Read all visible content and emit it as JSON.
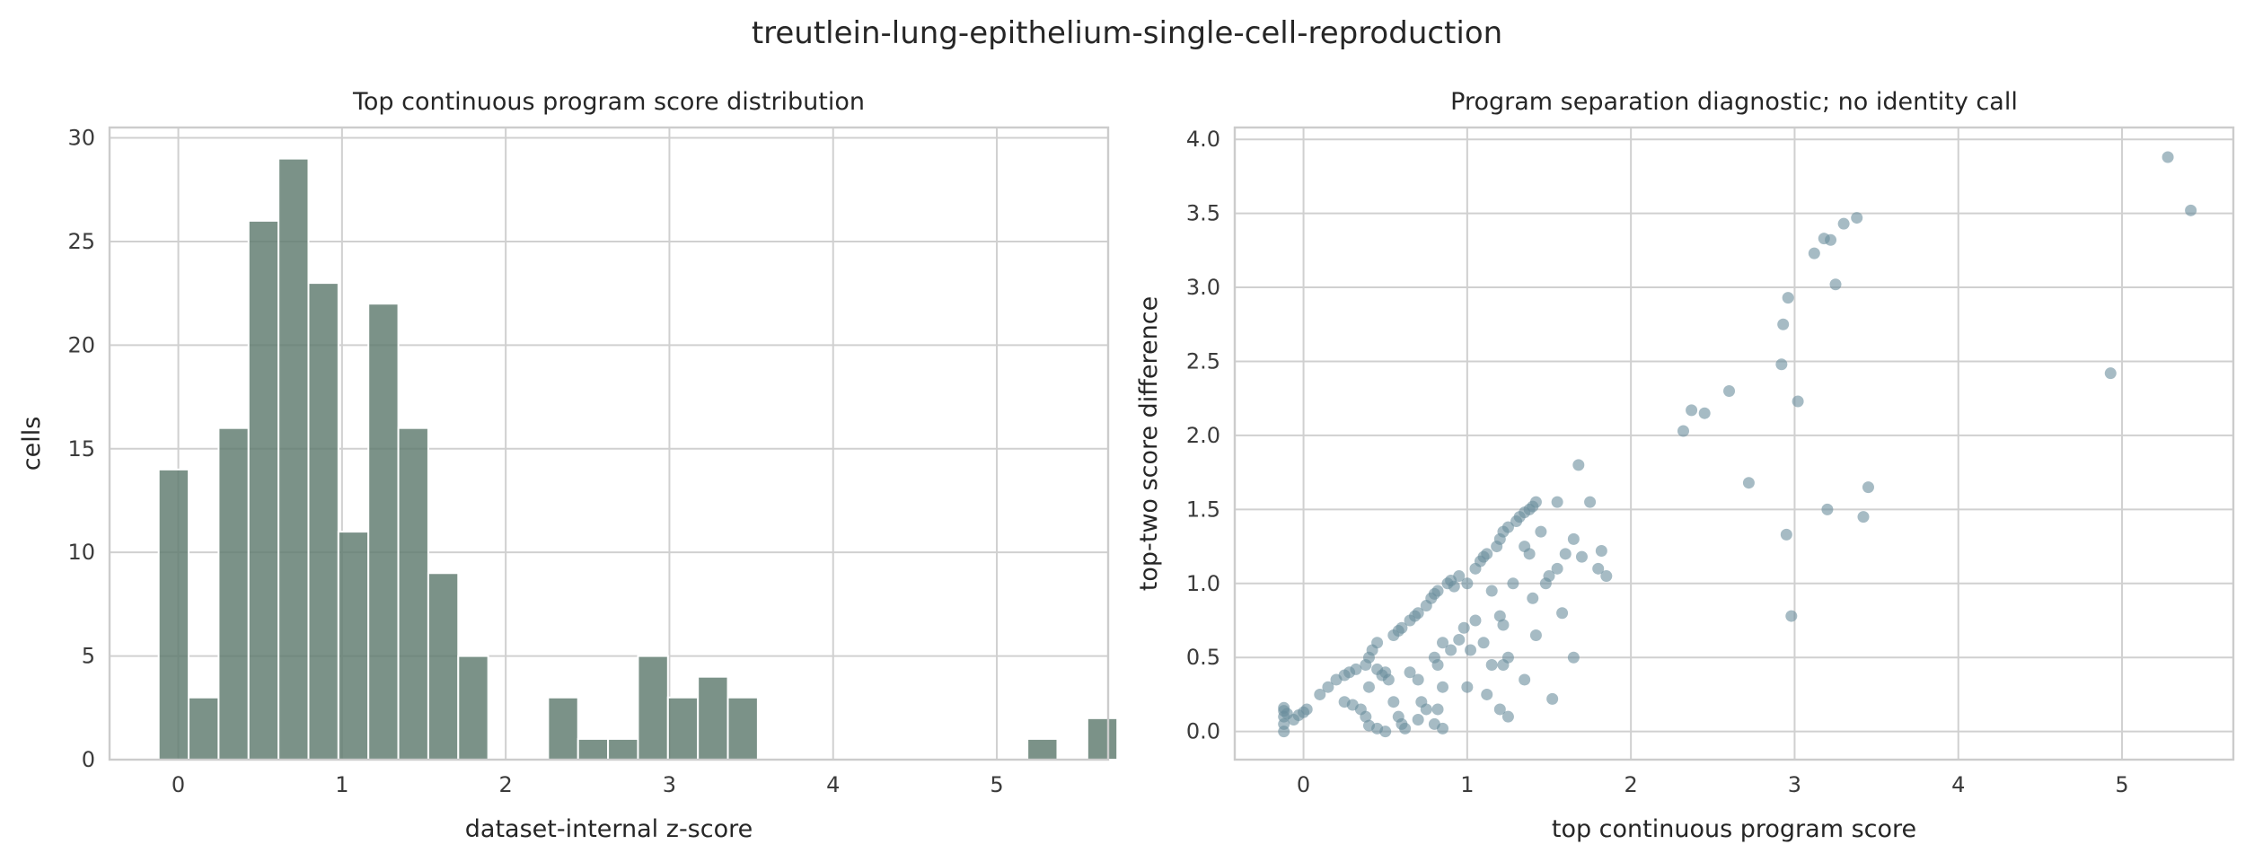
{
  "figure": {
    "suptitle": "treutlein-lung-epithelium-single-cell-reproduction"
  },
  "chart_data": [
    {
      "type": "bar",
      "title": "Top continuous program score distribution",
      "xlabel": "dataset-internal z-score",
      "ylabel": "cells",
      "xlim": [
        -0.42,
        5.68
      ],
      "ylim": [
        0,
        30.5
      ],
      "xticks": [
        0,
        1,
        2,
        3,
        4,
        5
      ],
      "yticks": [
        0,
        5,
        10,
        15,
        20,
        25,
        30
      ],
      "grid": true,
      "bin_width": 0.183,
      "bin_start": -0.12,
      "values": [
        14,
        3,
        16,
        26,
        29,
        23,
        11,
        22,
        16,
        9,
        5,
        0,
        0,
        3,
        1,
        1,
        5,
        3,
        4,
        3,
        0,
        0,
        0,
        0,
        0,
        0,
        0,
        0,
        0,
        1,
        0,
        2
      ],
      "color": "#5e7a6e"
    },
    {
      "type": "scatter",
      "title": "Program separation diagnostic; no identity call",
      "xlabel": "top continuous program score",
      "ylabel": "top-two score difference",
      "xlim": [
        -0.42,
        5.68
      ],
      "ylim": [
        -0.19,
        4.08
      ],
      "xticks": [
        0,
        1,
        2,
        3,
        4,
        5
      ],
      "yticks": [
        0.0,
        0.5,
        1.0,
        1.5,
        2.0,
        2.5,
        3.0,
        3.5,
        4.0
      ],
      "grid": true,
      "color": "#6b8e9c",
      "points": [
        [
          -0.12,
          0.0
        ],
        [
          -0.12,
          0.05
        ],
        [
          -0.12,
          0.1
        ],
        [
          -0.12,
          0.14
        ],
        [
          -0.12,
          0.16
        ],
        [
          -0.1,
          0.12
        ],
        [
          -0.06,
          0.08
        ],
        [
          -0.03,
          0.11
        ],
        [
          0.0,
          0.13
        ],
        [
          0.02,
          0.15
        ],
        [
          0.1,
          0.25
        ],
        [
          0.15,
          0.3
        ],
        [
          0.2,
          0.35
        ],
        [
          0.25,
          0.38
        ],
        [
          0.28,
          0.4
        ],
        [
          0.25,
          0.2
        ],
        [
          0.3,
          0.18
        ],
        [
          0.35,
          0.15
        ],
        [
          0.32,
          0.42
        ],
        [
          0.38,
          0.45
        ],
        [
          0.4,
          0.5
        ],
        [
          0.42,
          0.55
        ],
        [
          0.45,
          0.6
        ],
        [
          0.4,
          0.3
        ],
        [
          0.38,
          0.1
        ],
        [
          0.4,
          0.04
        ],
        [
          0.45,
          0.02
        ],
        [
          0.5,
          0.0
        ],
        [
          0.45,
          0.42
        ],
        [
          0.48,
          0.38
        ],
        [
          0.5,
          0.4
        ],
        [
          0.52,
          0.35
        ],
        [
          0.55,
          0.65
        ],
        [
          0.58,
          0.68
        ],
        [
          0.6,
          0.7
        ],
        [
          0.55,
          0.2
        ],
        [
          0.58,
          0.1
        ],
        [
          0.6,
          0.05
        ],
        [
          0.62,
          0.02
        ],
        [
          0.65,
          0.75
        ],
        [
          0.68,
          0.78
        ],
        [
          0.7,
          0.8
        ],
        [
          0.65,
          0.4
        ],
        [
          0.7,
          0.35
        ],
        [
          0.72,
          0.2
        ],
        [
          0.75,
          0.15
        ],
        [
          0.7,
          0.08
        ],
        [
          0.75,
          0.85
        ],
        [
          0.78,
          0.9
        ],
        [
          0.8,
          0.93
        ],
        [
          0.82,
          0.95
        ],
        [
          0.8,
          0.5
        ],
        [
          0.82,
          0.45
        ],
        [
          0.85,
          0.6
        ],
        [
          0.85,
          0.3
        ],
        [
          0.82,
          0.15
        ],
        [
          0.8,
          0.05
        ],
        [
          0.85,
          0.02
        ],
        [
          0.88,
          1.0
        ],
        [
          0.9,
          1.02
        ],
        [
          0.92,
          0.98
        ],
        [
          0.95,
          1.05
        ],
        [
          0.9,
          0.55
        ],
        [
          0.95,
          0.62
        ],
        [
          0.98,
          0.7
        ],
        [
          1.0,
          1.0
        ],
        [
          1.0,
          0.3
        ],
        [
          1.02,
          0.55
        ],
        [
          1.05,
          1.1
        ],
        [
          1.08,
          1.15
        ],
        [
          1.1,
          1.18
        ],
        [
          1.12,
          1.2
        ],
        [
          1.05,
          0.75
        ],
        [
          1.1,
          0.6
        ],
        [
          1.15,
          0.95
        ],
        [
          1.15,
          0.45
        ],
        [
          1.18,
          1.25
        ],
        [
          1.2,
          1.3
        ],
        [
          1.22,
          1.35
        ],
        [
          1.25,
          1.38
        ],
        [
          1.2,
          0.78
        ],
        [
          1.22,
          0.72
        ],
        [
          1.25,
          0.5
        ],
        [
          1.2,
          0.15
        ],
        [
          1.25,
          0.1
        ],
        [
          1.28,
          1.0
        ],
        [
          1.3,
          1.42
        ],
        [
          1.32,
          1.45
        ],
        [
          1.35,
          1.48
        ],
        [
          1.38,
          1.5
        ],
        [
          1.4,
          1.52
        ],
        [
          1.42,
          1.55
        ],
        [
          1.35,
          1.25
        ],
        [
          1.38,
          1.2
        ],
        [
          1.4,
          0.9
        ],
        [
          1.42,
          0.65
        ],
        [
          1.45,
          1.35
        ],
        [
          1.48,
          1.0
        ],
        [
          1.5,
          1.05
        ],
        [
          1.55,
          1.55
        ],
        [
          1.55,
          1.1
        ],
        [
          1.58,
          0.8
        ],
        [
          1.6,
          1.2
        ],
        [
          1.65,
          1.3
        ],
        [
          1.65,
          0.5
        ],
        [
          1.68,
          1.8
        ],
        [
          1.7,
          1.18
        ],
        [
          1.75,
          1.55
        ],
        [
          1.8,
          1.1
        ],
        [
          1.85,
          1.05
        ],
        [
          1.82,
          1.22
        ],
        [
          1.52,
          0.22
        ],
        [
          1.35,
          0.35
        ],
        [
          1.22,
          0.45
        ],
        [
          1.12,
          0.25
        ],
        [
          2.32,
          2.03
        ],
        [
          2.37,
          2.17
        ],
        [
          2.45,
          2.15
        ],
        [
          2.6,
          2.3
        ],
        [
          2.72,
          1.68
        ],
        [
          2.92,
          2.48
        ],
        [
          2.93,
          2.75
        ],
        [
          2.96,
          2.93
        ],
        [
          2.95,
          1.33
        ],
        [
          2.98,
          0.78
        ],
        [
          3.02,
          2.23
        ],
        [
          3.12,
          3.23
        ],
        [
          3.18,
          3.33
        ],
        [
          3.22,
          3.32
        ],
        [
          3.25,
          3.02
        ],
        [
          3.3,
          3.43
        ],
        [
          3.38,
          3.47
        ],
        [
          3.2,
          1.5
        ],
        [
          3.42,
          1.45
        ],
        [
          3.45,
          1.65
        ],
        [
          4.93,
          2.42
        ],
        [
          5.28,
          3.88
        ],
        [
          5.42,
          3.52
        ]
      ]
    }
  ]
}
